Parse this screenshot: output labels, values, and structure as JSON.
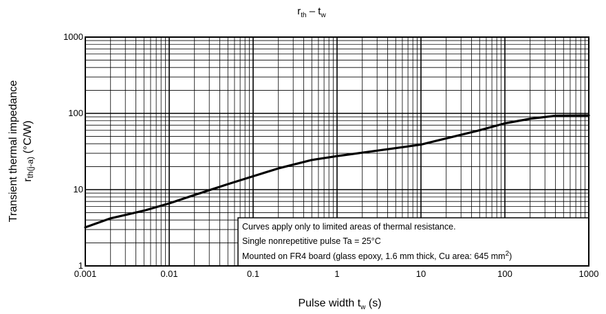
{
  "chart_data": {
    "type": "line",
    "title": {
      "main": "r",
      "main_sub": "th",
      "dash": " – t",
      "dash_sub": "w"
    },
    "xlabel": {
      "prefix": "Pulse width   t",
      "sub": "w",
      "suffix": "   (s)"
    },
    "ylabel": {
      "line1": "Transient thermal impedance",
      "line2_prefix": "r",
      "line2_sub": "th(j-a)",
      "line2_suffix": "   (°C/W)"
    },
    "x_scale": "log",
    "y_scale": "log",
    "xlim": [
      0.001,
      1000
    ],
    "ylim": [
      1,
      1000
    ],
    "x_ticks": [
      {
        "value": 0.001,
        "label": "0.001"
      },
      {
        "value": 0.01,
        "label": "0.01"
      },
      {
        "value": 0.1,
        "label": "0.1"
      },
      {
        "value": 1,
        "label": "1"
      },
      {
        "value": 10,
        "label": "10"
      },
      {
        "value": 100,
        "label": "100"
      },
      {
        "value": 1000,
        "label": "1000"
      }
    ],
    "y_ticks": [
      {
        "value": 1,
        "label": "1"
      },
      {
        "value": 10,
        "label": "10"
      },
      {
        "value": 100,
        "label": "100"
      },
      {
        "value": 1000,
        "label": "1000"
      }
    ],
    "grid": true,
    "series": [
      {
        "x": [
          0.001,
          0.002,
          0.005,
          0.01,
          0.02,
          0.05,
          0.1,
          0.2,
          0.5,
          1,
          2,
          5,
          10,
          20,
          50,
          100,
          200,
          400,
          1000
        ],
        "y": [
          3.2,
          4.2,
          5.3,
          6.6,
          8.5,
          11.8,
          15,
          19,
          24.5,
          27.5,
          30.5,
          35,
          39,
          47,
          60,
          74,
          85,
          93,
          94
        ]
      }
    ],
    "annotation": {
      "line1": "Curves apply only to limited areas of thermal resistance.",
      "line2": "Single nonrepetitive pulse    Ta = 25°C",
      "line3_prefix": "Mounted on FR4 board (glass epoxy, 1.6 mm thick, Cu area: 645 mm",
      "line3_sup": "2",
      "line3_suffix": ")"
    },
    "colors": {
      "line": "#000000",
      "grid": "#000000",
      "background": "#ffffff"
    }
  }
}
